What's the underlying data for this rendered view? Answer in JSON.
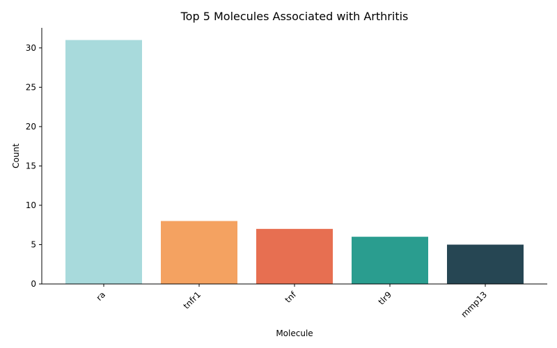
{
  "chart_data": {
    "type": "bar",
    "title": "Top 5 Molecules Associated with Arthritis",
    "xlabel": "Molecule",
    "ylabel": "Count",
    "categories": [
      "ra",
      "tnfr1",
      "tnf",
      "tlr9",
      "mmp13"
    ],
    "values": [
      31,
      8,
      7,
      6,
      5
    ],
    "colors": [
      "#a8dadc",
      "#f4a261",
      "#e76f51",
      "#2a9d8f",
      "#264653"
    ],
    "ylim": [
      0,
      32.55
    ],
    "yticks": [
      0,
      5,
      10,
      15,
      20,
      25,
      30
    ],
    "grid": false,
    "legend": "none"
  }
}
